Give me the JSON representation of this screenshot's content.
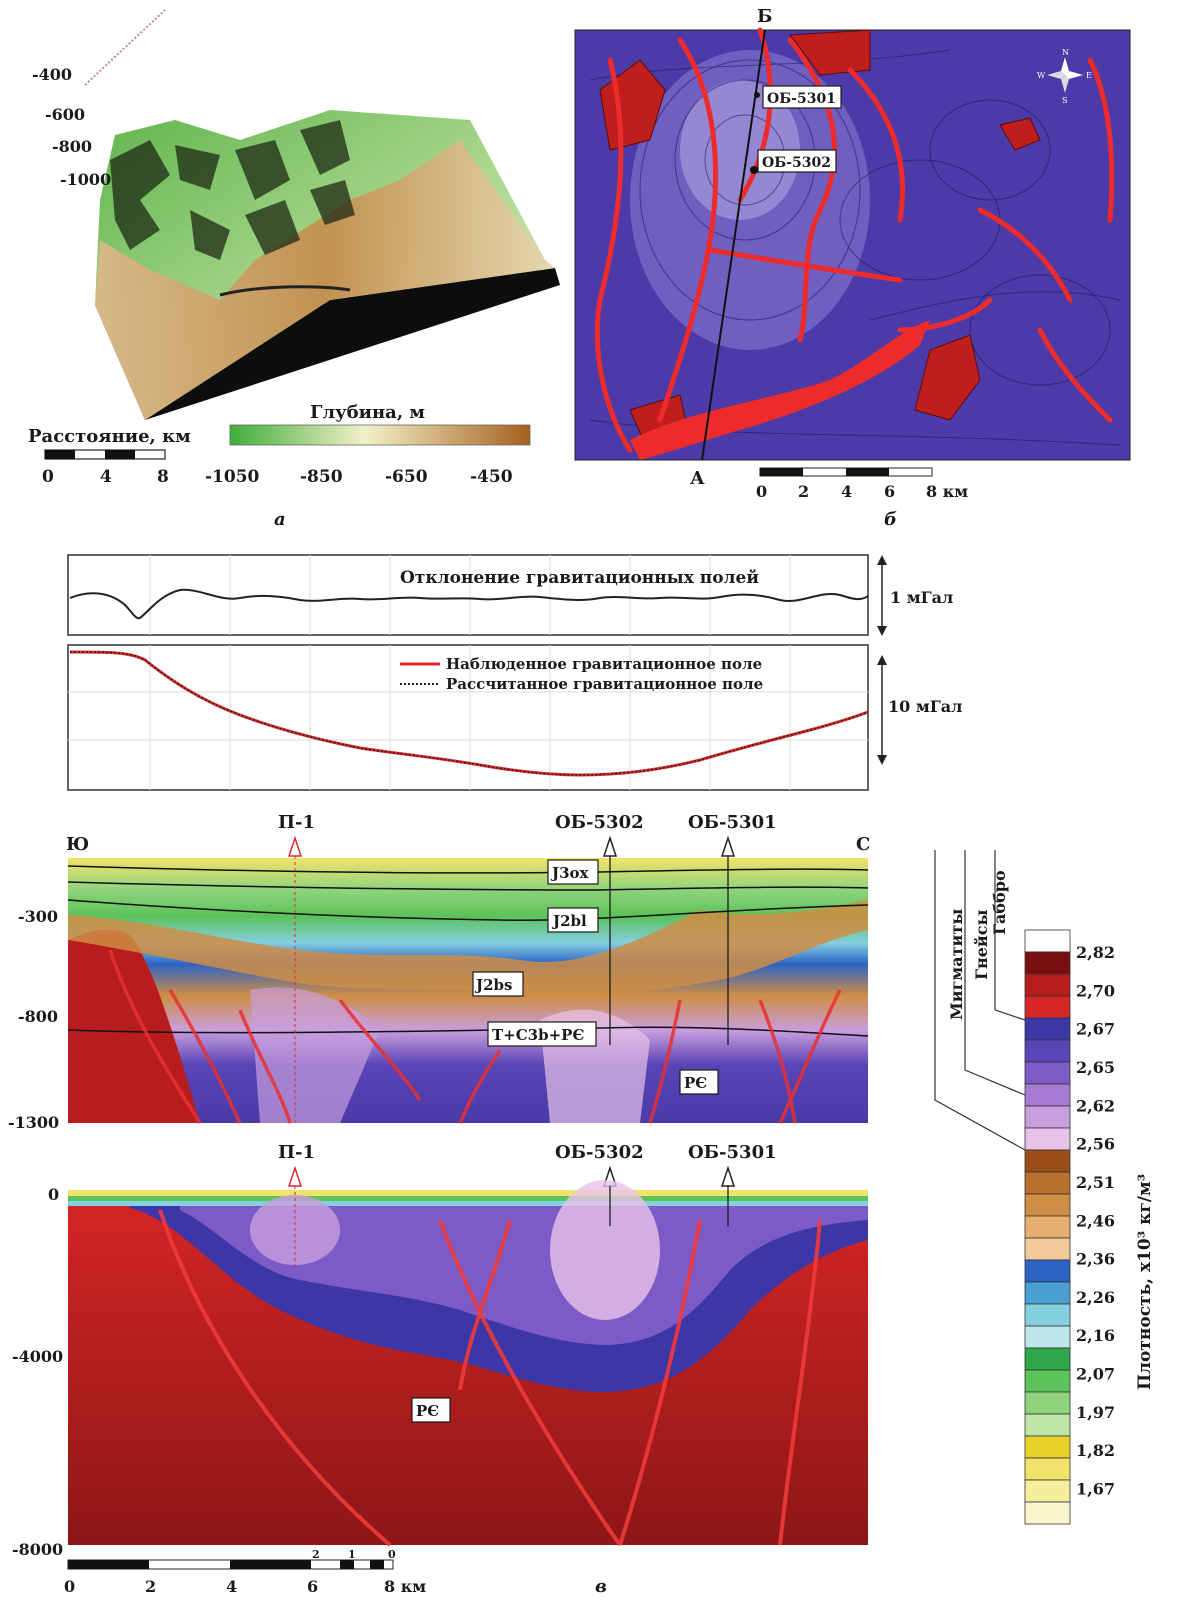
{
  "panel_a": {
    "depth_ticks": [
      "-400",
      "-600",
      "-800",
      "-1000"
    ],
    "distance_label": "Расстояние, км",
    "distance_ticks": [
      "0",
      "4",
      "8"
    ],
    "depth_title": "Глубина, м",
    "depth_scale_ticks": [
      "-1050",
      "-850",
      "-650",
      "-450"
    ],
    "colors": {
      "low": "#3fae3b",
      "mid": "#f3f0c8",
      "high": "#a5611d"
    },
    "caption": "а"
  },
  "panel_b": {
    "point_top": "Б",
    "point_bottom": "А",
    "well1": "ОБ-5301",
    "well2": "ОБ-5302",
    "scale_ticks": [
      "0",
      "2",
      "4",
      "6",
      "8 км"
    ],
    "compass": {
      "n": "N",
      "s": "S",
      "w": "W",
      "e": "E"
    },
    "colors": {
      "background": "#4b3aa8",
      "anomaly": "#ee2b2b"
    },
    "caption": "б"
  },
  "residual": {
    "title": "Отклонение гравитационных полей",
    "scale": "1 мГал"
  },
  "gravity": {
    "legend_observed": "Наблюденное гравитационное поле",
    "legend_calculated": "Рассчитанное гравитационное поле",
    "scale": "10 мГал",
    "colors": {
      "observed": "#e02a2a",
      "calculated": "#222222"
    }
  },
  "section_upper": {
    "left": "Ю",
    "right": "С",
    "marker_p1": "П-1",
    "marker_w2": "ОБ-5302",
    "marker_w1": "ОБ-5301",
    "y_ticks": [
      "-300",
      "-800",
      "-1300"
    ],
    "layers": [
      "J3ox",
      "J2bl",
      "J2bs",
      "T+C3b+PЄ",
      "PЄ"
    ]
  },
  "section_lower": {
    "marker_p1": "П-1",
    "marker_w2": "ОБ-5302",
    "marker_w1": "ОБ-5301",
    "y_ticks": [
      "0",
      "-4000",
      "-8000"
    ],
    "layer": "PЄ",
    "scale_ticks": [
      "0",
      "2",
      "4",
      "6",
      "8 км"
    ],
    "vertical_ticks": [
      "2",
      "1",
      "0"
    ],
    "caption": "в"
  },
  "density_legend": {
    "rock_labels": [
      "Мигматиты",
      "Гнейсы",
      "Габбро"
    ],
    "axis_label": "Плотность, x10³ кг/м³",
    "values": [
      "2,82",
      "2,70",
      "2,67",
      "2,65",
      "2,62",
      "2,56",
      "2,51",
      "2,46",
      "2,36",
      "2,26",
      "2,16",
      "2,07",
      "1,97",
      "1,82",
      "1,67"
    ],
    "colors": [
      "#ffffff",
      "#7a0f0f",
      "#b81d1d",
      "#d52626",
      "#3c36a6",
      "#5a45b6",
      "#7d5bc6",
      "#a77bd3",
      "#c89ede",
      "#e8c3e8",
      "#9a4e1a",
      "#b8702e",
      "#cf8d45",
      "#e6ae6f",
      "#f3c99a",
      "#2d63c4",
      "#4aa0d4",
      "#84cfe0",
      "#bfe6ea",
      "#2ea84a",
      "#5cc25a",
      "#8fd47c",
      "#bfe6a8",
      "#e8d22a",
      "#f1e36a",
      "#f6ee9c",
      "#faf6cc"
    ]
  }
}
